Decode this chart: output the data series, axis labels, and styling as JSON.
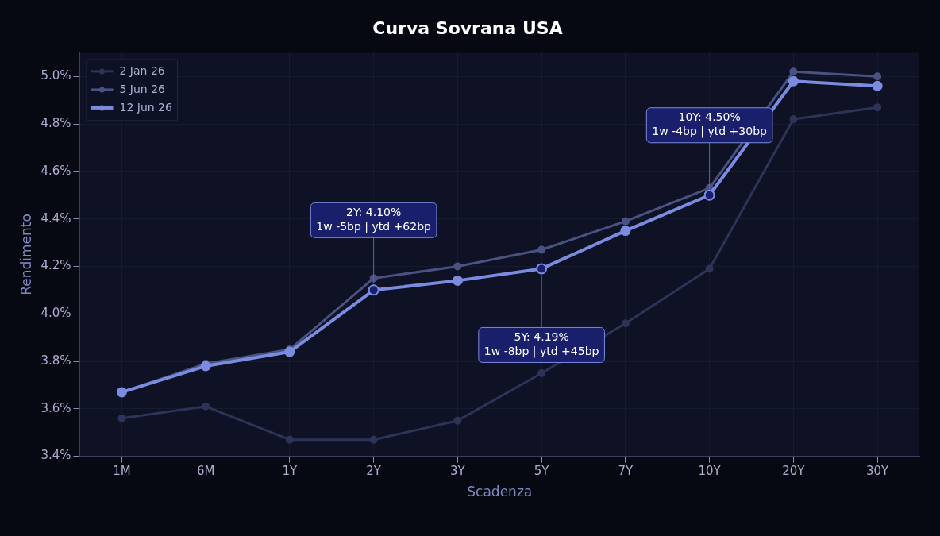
{
  "chart_data": {
    "type": "line",
    "title": "Curva Sovrana USA",
    "xlabel": "Scadenza",
    "ylabel": "Rendimento",
    "categories": [
      "1M",
      "6M",
      "1Y",
      "2Y",
      "3Y",
      "5Y",
      "7Y",
      "10Y",
      "20Y",
      "30Y"
    ],
    "series": [
      {
        "name": "2 Jan 26",
        "color": "#2e3358",
        "values": [
          3.56,
          3.61,
          3.47,
          3.47,
          3.55,
          3.75,
          3.96,
          4.19,
          4.82,
          4.87
        ]
      },
      {
        "name": "5 Jun 26",
        "color": "#4a5282",
        "values": [
          3.67,
          3.79,
          3.85,
          4.15,
          4.2,
          4.27,
          4.39,
          4.53,
          5.02,
          5.0
        ]
      },
      {
        "name": "12 Jun 26",
        "color": "#7b8ce0",
        "values": [
          3.67,
          3.78,
          3.84,
          4.1,
          4.14,
          4.19,
          4.35,
          4.5,
          4.98,
          4.96
        ]
      }
    ],
    "ylim": [
      3.4,
      5.1
    ],
    "yticks": [
      {
        "value": 3.4,
        "label": "3.4%"
      },
      {
        "value": 3.6,
        "label": "3.6%"
      },
      {
        "value": 3.8,
        "label": "3.8%"
      },
      {
        "value": 4.0,
        "label": "4.0%"
      },
      {
        "value": 4.2,
        "label": "4.2%"
      },
      {
        "value": 4.4,
        "label": "4.4%"
      },
      {
        "value": 4.6,
        "label": "4.6%"
      },
      {
        "value": 4.8,
        "label": "4.8%"
      },
      {
        "value": 5.0,
        "label": "5.0%"
      }
    ],
    "grid": true,
    "legend": "top left",
    "marker": "circle",
    "line_style": "solid",
    "annotations": [
      {
        "text": "2Y: 4.10%\n1w -5bp | ytd +62bp",
        "x": "2Y",
        "y": 4.1
      },
      {
        "text": "5Y: 4.19%\n1w -8bp | ytd +45bp",
        "x": "5Y",
        "y": 4.19
      },
      {
        "text": "10Y: 4.50%\n1w -4bp | ytd +30bp",
        "x": "10Y",
        "y": 4.5
      }
    ]
  }
}
